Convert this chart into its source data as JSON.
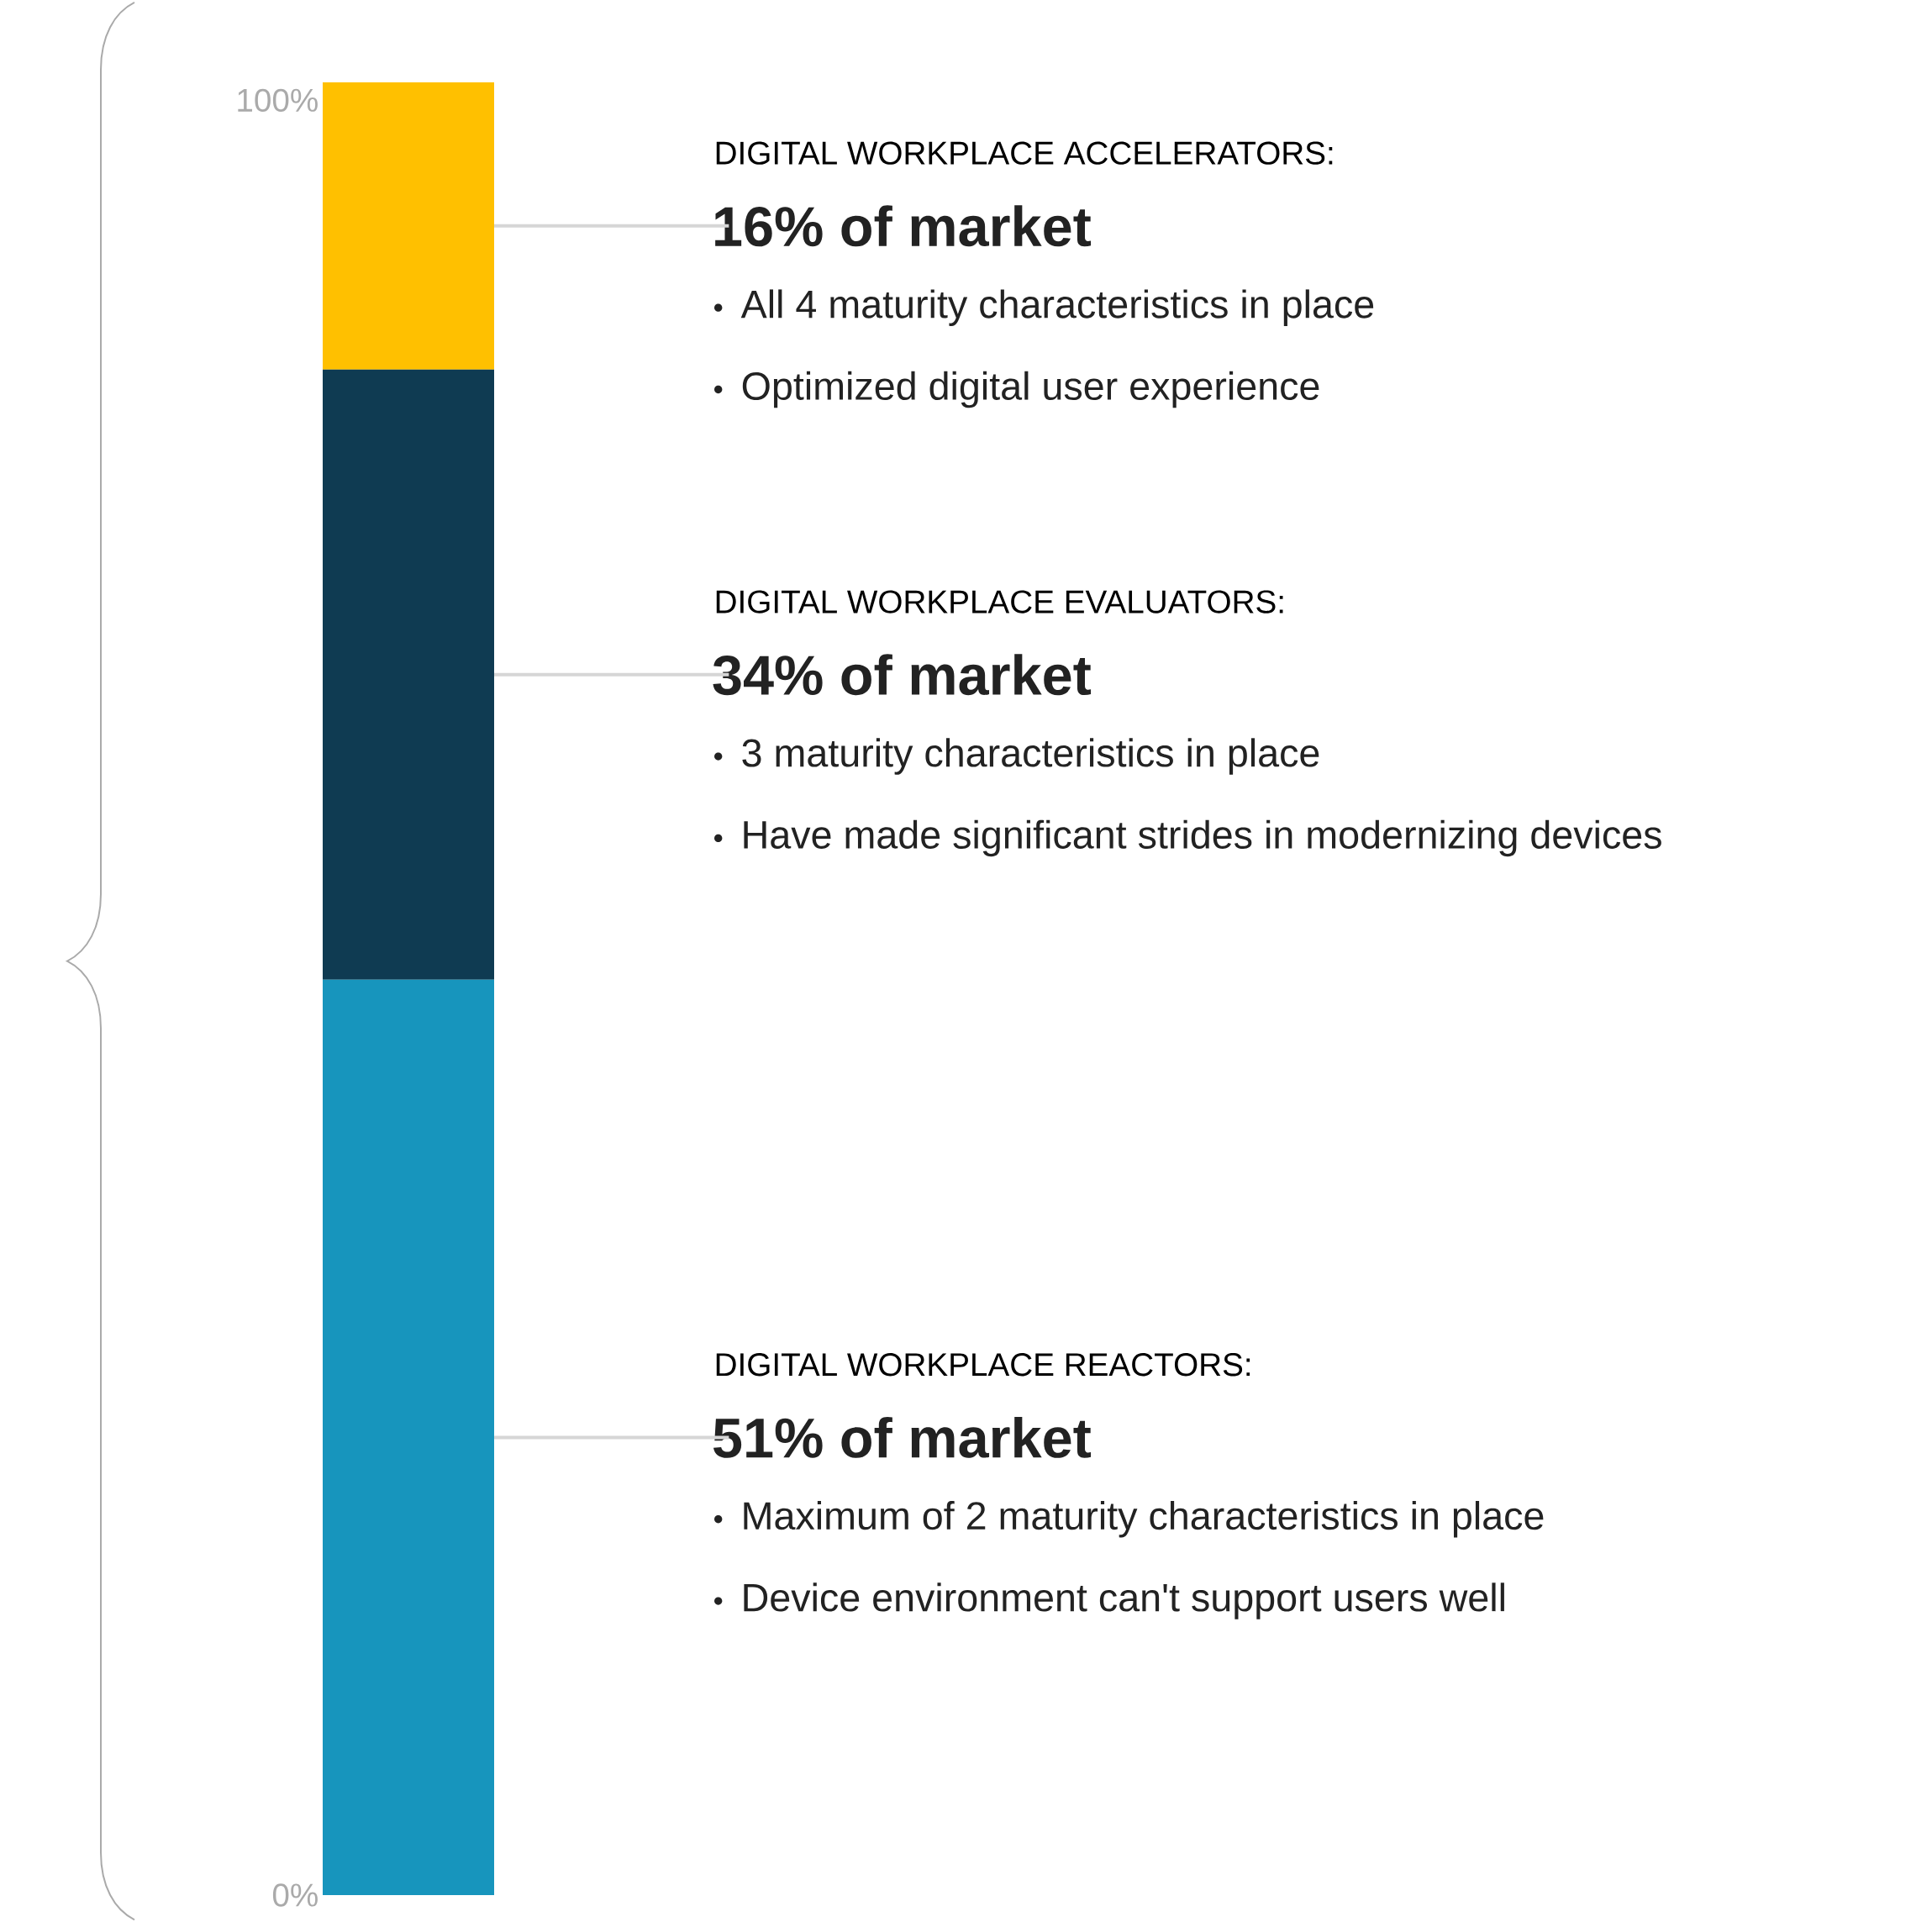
{
  "chart_data": {
    "type": "bar",
    "stacked": true,
    "categories": [
      null
    ],
    "series": [
      {
        "name": "DIGITAL WORKPLACE REACTORS:",
        "color": "#1795bd",
        "values": [
          51
        ],
        "value_labels": [
          "51% of market"
        ]
      },
      {
        "name": "DIGITAL WORKPLACE EVALUATORS:",
        "color": "#0f3b52",
        "values": [
          34
        ],
        "value_labels": [
          "34% of market"
        ]
      },
      {
        "name": "DIGITAL WORKPLACE ACCELERATORS:",
        "color": "#ffc000",
        "values": [
          16
        ],
        "value_labels": [
          "16% of market"
        ]
      }
    ],
    "ylim": [
      0,
      101
    ],
    "yticks": [
      {
        "value": 0,
        "label": "0%"
      },
      {
        "value": 100,
        "label": "100%"
      }
    ],
    "annotations": [
      "All 4 maturity characteristics in place",
      "Optimized digital user experience",
      "3 maturity characteristics in place",
      "Have made significant strides in modernizing devices",
      "Maximum of 2 maturity characteristics in place",
      "Device environment can't support users well"
    ]
  }
}
